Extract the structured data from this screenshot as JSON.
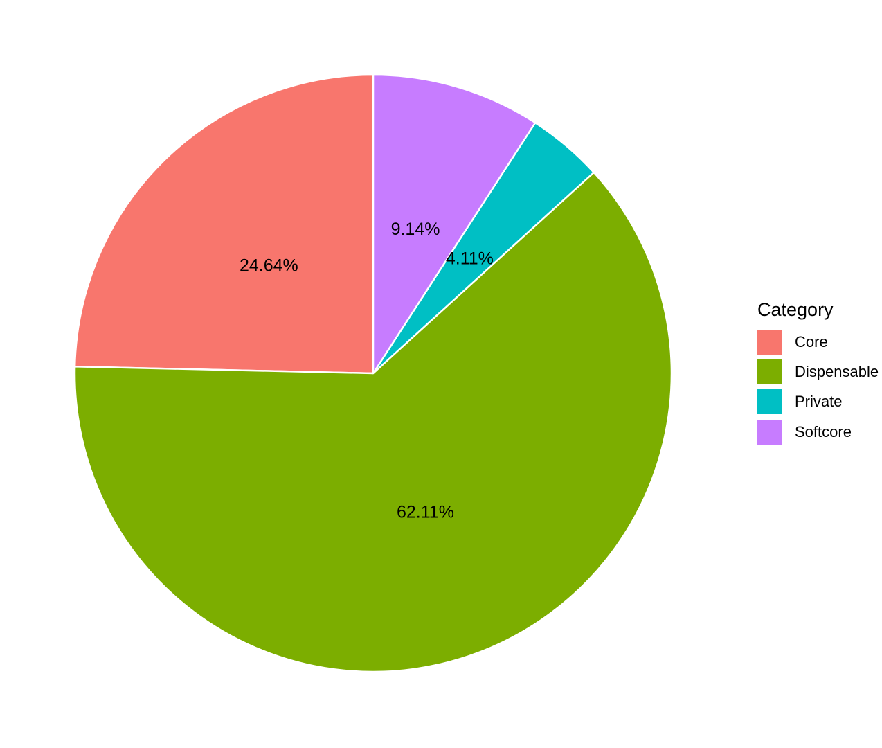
{
  "chart_data": {
    "type": "pie",
    "categories": [
      "Core",
      "Dispensable",
      "Private",
      "Softcore"
    ],
    "values": [
      24.64,
      62.11,
      4.11,
      9.14
    ],
    "labels": [
      "24.64%",
      "62.11%",
      "4.11%",
      "9.14%"
    ],
    "colors": [
      "#F8766D",
      "#7CAE00",
      "#00BFC4",
      "#C77CFF"
    ],
    "start": "12 o'clock",
    "direction": "counterclockwise",
    "legend": {
      "title": "Category",
      "position": "right"
    }
  }
}
